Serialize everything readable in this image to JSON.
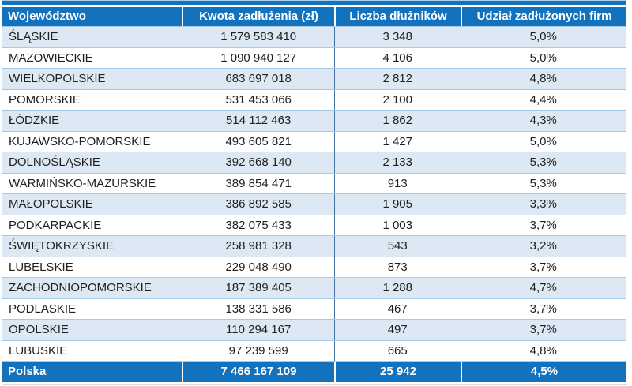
{
  "table": {
    "columns": [
      {
        "id": "wojewodztwo",
        "label": "Województwo"
      },
      {
        "id": "kwota",
        "label": "Kwota zadłużenia (zł)"
      },
      {
        "id": "liczba",
        "label": "Liczba dłużników"
      },
      {
        "id": "udzial",
        "label": "Udział zadłużonych firm"
      }
    ],
    "rows": [
      [
        "ŚLĄSKIE",
        "1 579 583 410",
        "3 348",
        "5,0%"
      ],
      [
        "MAZOWIECKIE",
        "1 090 940 127",
        "4 106",
        "5,0%"
      ],
      [
        "WIELKOPOLSKIE",
        "683 697 018",
        "2 812",
        "4,8%"
      ],
      [
        "POMORSKIE",
        "531 453 066",
        "2 100",
        "4,4%"
      ],
      [
        "ŁÓDZKIE",
        "514 112 463",
        "1 862",
        "4,3%"
      ],
      [
        "KUJAWSKO-POMORSKIE",
        "493 605 821",
        "1 427",
        "5,0%"
      ],
      [
        "DOLNOŚLĄSKIE",
        "392 668 140",
        "2 133",
        "5,3%"
      ],
      [
        "WARMIŃSKO-MAZURSKIE",
        "389 854 471",
        "913",
        "5,3%"
      ],
      [
        "MAŁOPOLSKIE",
        "386 892 585",
        "1 905",
        "3,3%"
      ],
      [
        "PODKARPACKIE",
        "382 075 433",
        "1 003",
        "3,7%"
      ],
      [
        "ŚWIĘTOKRZYSKIE",
        "258 981 328",
        "543",
        "3,2%"
      ],
      [
        "LUBELSKIE",
        "229 048 490",
        "873",
        "3,7%"
      ],
      [
        "ZACHODNIOPOMORSKIE",
        "187 389 405",
        "1 288",
        "4,7%"
      ],
      [
        "PODLASKIE",
        "138 331 586",
        "467",
        "3,7%"
      ],
      [
        "OPOLSKIE",
        "110 294 167",
        "497",
        "3,7%"
      ],
      [
        "LUBUSKIE",
        "97 239 599",
        "665",
        "4,8%"
      ]
    ],
    "footer": [
      "Polska",
      "7 466 167 109",
      "25 942",
      "4,5%"
    ]
  },
  "colors": {
    "accent_blue": "#1272BE",
    "row_alt_blue": "#DCE9F5",
    "row_plain": "#FFFFFF",
    "grid_vertical": "#41719C",
    "grid_horizontal": "#A6C9E6",
    "header_text": "#FFFFFF",
    "body_text": "#1F1F1F"
  },
  "chart_data": {
    "type": "table",
    "title": "",
    "columns": [
      "Województwo",
      "Kwota zadłużenia (zł)",
      "Liczba dłużników",
      "Udział zadłużonych firm"
    ],
    "categories": [
      "ŚLĄSKIE",
      "MAZOWIECKIE",
      "WIELKOPOLSKIE",
      "POMORSKIE",
      "ŁÓDZKIE",
      "KUJAWSKO-POMORSKIE",
      "DOLNOŚLĄSKIE",
      "WARMIŃSKO-MAZURSKIE",
      "MAŁOPOLSKIE",
      "PODKARPACKIE",
      "ŚWIĘTOKRZYSKIE",
      "LUBELSKIE",
      "ZACHODNIOPOMORSKIE",
      "PODLASKIE",
      "OPOLSKIE",
      "LUBUSKIE"
    ],
    "series": [
      {
        "name": "Kwota zadłużenia (zł)",
        "values": [
          1579583410,
          1090940127,
          683697018,
          531453066,
          514112463,
          493605821,
          392668140,
          389854471,
          386892585,
          382075433,
          258981328,
          229048490,
          187389405,
          138331586,
          110294167,
          97239599
        ]
      },
      {
        "name": "Liczba dłużników",
        "values": [
          3348,
          4106,
          2812,
          2100,
          1862,
          1427,
          2133,
          913,
          1905,
          1003,
          543,
          873,
          1288,
          467,
          497,
          665
        ]
      },
      {
        "name": "Udział zadłużonych firm (%)",
        "values": [
          5.0,
          5.0,
          4.8,
          4.4,
          4.3,
          5.0,
          5.3,
          5.3,
          3.3,
          3.7,
          3.2,
          3.7,
          4.7,
          3.7,
          3.7,
          4.8
        ]
      }
    ],
    "total": {
      "name": "Polska",
      "kwota": 7466167109,
      "liczba": 25942,
      "udzial": 4.5
    }
  }
}
